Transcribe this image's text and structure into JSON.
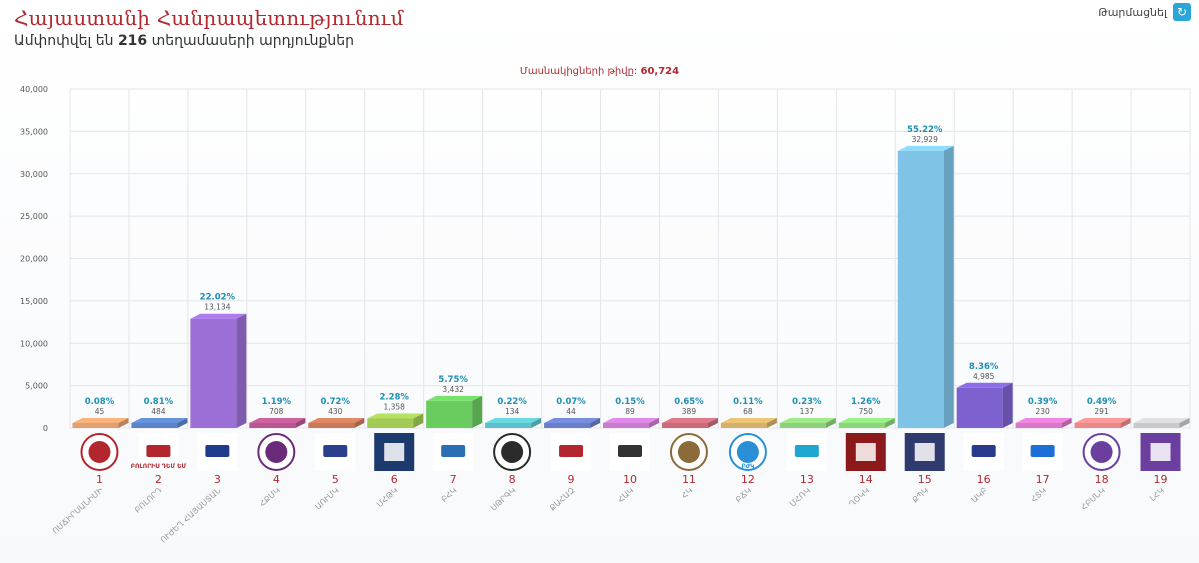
{
  "header": {
    "title": "Հայաստանի Հանրապետությունում",
    "subtitle_prefix": "Ամփոփվել են",
    "subtitle_count": "216",
    "subtitle_suffix": "տեղամասերի արդյունքներ",
    "refresh_label": "Թարմացնել"
  },
  "participants": {
    "label": "Մասնակիցների թիվը:",
    "value": "60,724"
  },
  "colors": {
    "title": "#b2282e",
    "pct_label": "#1f8fb4"
  },
  "chart_data": {
    "type": "bar",
    "ylim": [
      0,
      40000
    ],
    "yticks": [
      0,
      5000,
      10000,
      15000,
      20000,
      25000,
      30000,
      35000,
      40000
    ],
    "ytick_labels": [
      "0",
      "5,000",
      "10,000",
      "15,000",
      "20,000",
      "25,000",
      "30,000",
      "35,000",
      "40,000"
    ],
    "grid": true,
    "categories": [
      "1",
      "2",
      "3",
      "4",
      "5",
      "6",
      "7",
      "8",
      "9",
      "10",
      "11",
      "12",
      "13",
      "14",
      "15",
      "16",
      "17",
      "18",
      "19"
    ],
    "parties": [
      "ՈՄՃԻՐՍԱՆԻՄԻ",
      "ԲՈԼՈՐԴ",
      "ՈՒԺԵՂ ՀԱՅԱՍՏԱՆ",
      "ՀՔՄԿ",
      "ԱՈՒՄԿ",
      "ՄՀԹԿ",
      "ԲՀԿ",
      "ՍԹՐԳԿ",
      "ՔԱՀԱԶ",
      "ՀԱԿ",
      "ՀԿ",
      "ԲՃԿ",
      "ՄՀՌԿ",
      "ՂՕԿԿ",
      "ՔՊԿ",
      "ԱԿԲ",
      "ՀՏԿ",
      "ՀԲՍՆԿ",
      "ԼՀԿ"
    ],
    "logo_labels": [
      "",
      "ԲՈԼՈՐԻՍ ԴԵՄ ԵՄ",
      "",
      "",
      "",
      "",
      "",
      "",
      "",
      "",
      "",
      "ԲԺԿ",
      "",
      "",
      "",
      "",
      "",
      "",
      ""
    ],
    "values": [
      45,
      484,
      13134,
      708,
      430,
      1358,
      3432,
      134,
      44,
      89,
      389,
      68,
      137,
      750,
      32929,
      4985,
      230,
      291,
      0
    ],
    "value_labels": [
      "45",
      "484",
      "13,134",
      "708",
      "430",
      "1,358",
      "3,432",
      "134",
      "44",
      "89",
      "389",
      "68",
      "137",
      "750",
      "32,929",
      "4,985",
      "230",
      "291",
      ""
    ],
    "percents": [
      "0.08%",
      "0.81%",
      "22.02%",
      "1.19%",
      "0.72%",
      "2.28%",
      "5.75%",
      "0.22%",
      "0.07%",
      "0.15%",
      "0.65%",
      "0.11%",
      "0.23%",
      "1.26%",
      "55.22%",
      "8.36%",
      "0.39%",
      "0.49%",
      ""
    ],
    "bar_colors": [
      "#e0a070",
      "#5b83c7",
      "#9b6fd6",
      "#b8578f",
      "#c97a5a",
      "#a3c957",
      "#6acb5f",
      "#5ec1c9",
      "#6b7fc9",
      "#c97bd0",
      "#c96b7a",
      "#d4b06a",
      "#8fd17a",
      "#8ad67a",
      "#7fc4e6",
      "#7d62cf",
      "#d978c8",
      "#e88a8a",
      "#c9c9c9"
    ],
    "logo_colors": [
      "#b3262d",
      "#b3262d",
      "#1f3b8c",
      "#6a2c7a",
      "#2b3f8c",
      "#1d3a6e",
      "#2a6fb3",
      "#2b2b2b",
      "#b3262d",
      "#333333",
      "#8c6a3a",
      "#2a8fd6",
      "#1fa6d0",
      "#8c1a1a",
      "#2f3b6e",
      "#2a3b8c",
      "#1d6fd6",
      "#6a3fa0",
      "#6a3fa0"
    ]
  }
}
